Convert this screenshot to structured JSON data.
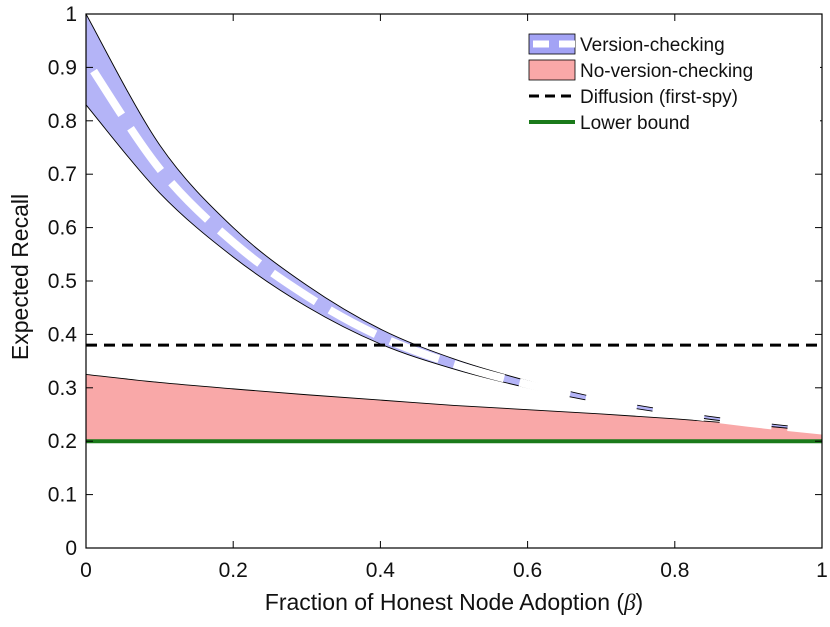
{
  "chart_data": {
    "type": "area",
    "title": "",
    "xlabel": "Fraction of Honest Node Adoption (",
    "xlabel_symbol": "β",
    "xlabel_close": ")",
    "ylabel": "Expected Recall",
    "xlim": [
      0,
      1
    ],
    "ylim": [
      0,
      1
    ],
    "xticks": [
      "0",
      "0.2",
      "0.4",
      "0.6",
      "0.8",
      "1"
    ],
    "yticks": [
      "0",
      "0.1",
      "0.2",
      "0.3",
      "0.4",
      "0.5",
      "0.6",
      "0.7",
      "0.8",
      "0.9",
      "1"
    ],
    "x": [
      0,
      0.1,
      0.2,
      0.3,
      0.4,
      0.5,
      0.6,
      0.7,
      0.8,
      0.9,
      1.0
    ],
    "series": [
      {
        "name": "Version-checking",
        "kind": "band",
        "color": "#a3a3f5",
        "upper": [
          1.0,
          0.755,
          0.6,
          0.492,
          0.41,
          0.354,
          0.313,
          0.28,
          0.256,
          0.237,
          0.222
        ],
        "lower": [
          0.83,
          0.665,
          0.545,
          0.452,
          0.382,
          0.335,
          0.3,
          0.272,
          0.25,
          0.232,
          0.218
        ]
      },
      {
        "name": "No-version-checking",
        "kind": "band",
        "color": "#f9a8a8",
        "upper": [
          0.325,
          0.31,
          0.298,
          0.287,
          0.277,
          0.267,
          0.259,
          0.251,
          0.242,
          0.231,
          0.22
        ],
        "lower": [
          0.2,
          0.2,
          0.2,
          0.2,
          0.2,
          0.2,
          0.2,
          0.2,
          0.2,
          0.2,
          0.2
        ]
      },
      {
        "name": "Diffusion (first-spy)",
        "kind": "line",
        "style": "dashed",
        "color": "#000000",
        "values": [
          0.38,
          0.38,
          0.38,
          0.38,
          0.38,
          0.38,
          0.38,
          0.38,
          0.38,
          0.38,
          0.38
        ]
      },
      {
        "name": "Lower bound",
        "kind": "line",
        "style": "solid",
        "color": "#1a7a1a",
        "values": [
          0.2,
          0.2,
          0.2,
          0.2,
          0.2,
          0.2,
          0.2,
          0.2,
          0.2,
          0.2,
          0.2
        ]
      }
    ],
    "legend_position": "top-right",
    "grid": false
  }
}
